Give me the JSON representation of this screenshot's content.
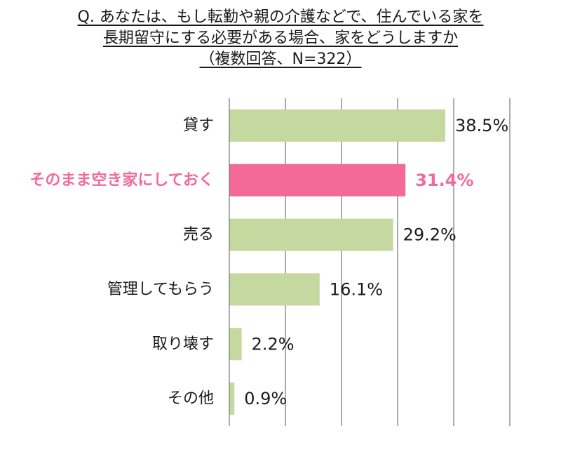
{
  "chart_data": {
    "type": "bar",
    "orientation": "horizontal",
    "title": [
      "Q. あなたは、もし転勤や親の介護などで、住んでいる家を",
      "長期留守にする必要がある場合、家をどうしますか",
      "（複数回答、N=322）"
    ],
    "categories": [
      "貸す",
      "そのまま空き家にしておく",
      "売る",
      "管理してもらう",
      "取り壊す",
      "その他"
    ],
    "values": [
      38.5,
      31.4,
      29.2,
      16.1,
      2.2,
      0.9
    ],
    "value_labels": [
      "38.5%",
      "31.4%",
      "29.2%",
      "16.1%",
      "2.2%",
      "0.9%"
    ],
    "highlight_index": 1,
    "xlim": [
      0,
      50
    ],
    "grid": true,
    "legend": "none"
  },
  "colors": {
    "bar": "#c5d89f",
    "highlight": "#f36a98",
    "grid": "#808080",
    "text": "#1a1a1a"
  }
}
